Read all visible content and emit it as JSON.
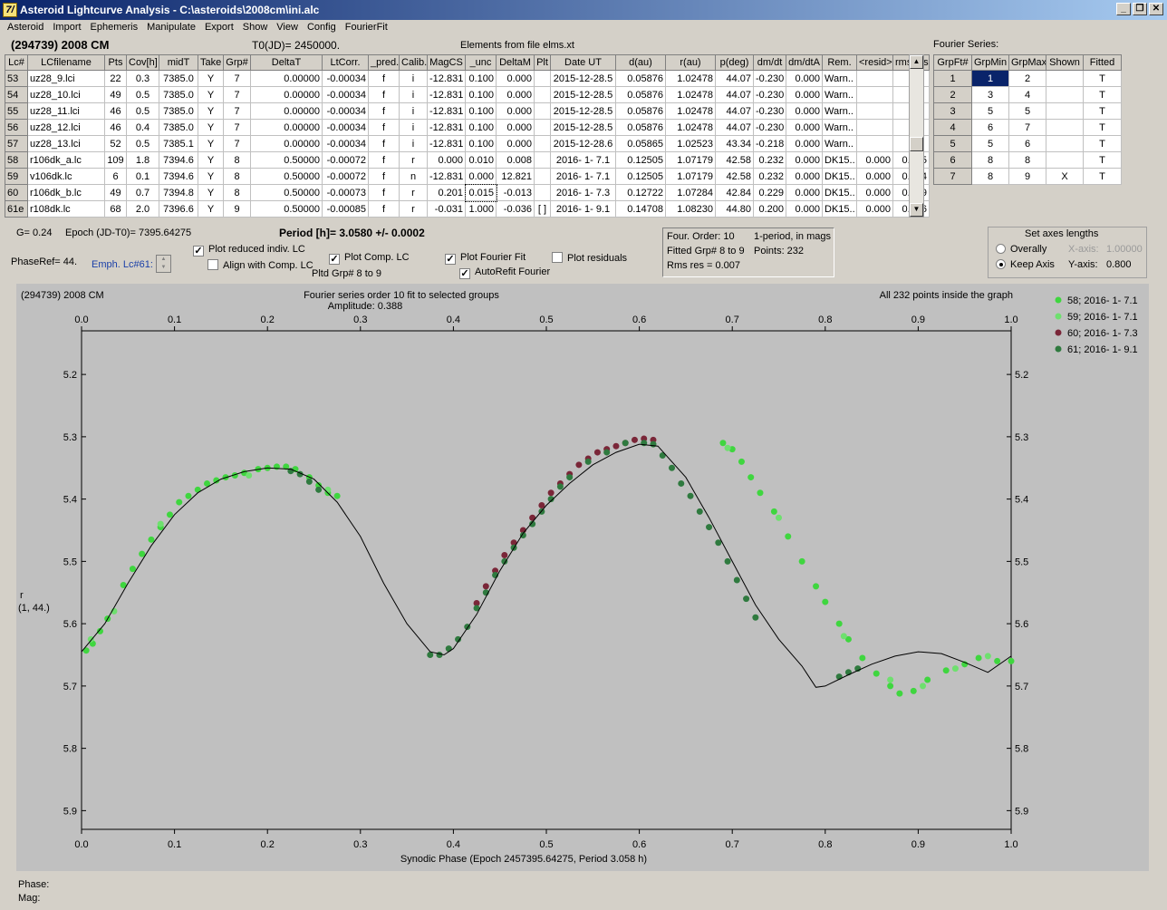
{
  "window": {
    "title": "Asteroid Lightcurve Analysis - C:\\asteroids\\2008cm\\ini.alc",
    "icon_label": "7/"
  },
  "menu": [
    "Asteroid",
    "Import",
    "Ephemeris",
    "Manipulate",
    "Export",
    "Show",
    "View",
    "Config",
    "FourierFit"
  ],
  "header": {
    "asteroid": "(294739) 2008 CM",
    "t0": "T0(JD)= 2450000.",
    "elements": "Elements from file elms.xt",
    "fourier_series_label": "Fourier Series:"
  },
  "lc_table": {
    "columns": [
      "Lc#",
      "LCfilename",
      "Pts",
      "Cov[h]",
      "midT",
      "Take",
      "Grp#",
      "DeltaT",
      "LtCorr.",
      "_pred.",
      "Calib.",
      "MagCS",
      "_unc",
      "DeltaM",
      "Plt",
      "Date UT",
      "d(au)",
      "r(au)",
      "p(deg)",
      "dm/dt",
      "dm/dtA",
      "Rem.",
      "<resid>",
      "rms res"
    ],
    "rows": [
      [
        "53",
        "uz28_9.lci",
        "22",
        "0.3",
        "7385.0",
        "Y",
        "7",
        "0.00000",
        "-0.00034",
        "f",
        "i",
        "-12.831",
        "0.100",
        "0.000",
        "",
        "2015-12-28.5",
        "0.05876",
        "1.02478",
        "44.07",
        "-0.230",
        "0.000",
        "Warn..",
        "",
        ""
      ],
      [
        "54",
        "uz28_10.lci",
        "49",
        "0.5",
        "7385.0",
        "Y",
        "7",
        "0.00000",
        "-0.00034",
        "f",
        "i",
        "-12.831",
        "0.100",
        "0.000",
        "",
        "2015-12-28.5",
        "0.05876",
        "1.02478",
        "44.07",
        "-0.230",
        "0.000",
        "Warn..",
        "",
        ""
      ],
      [
        "55",
        "uz28_11.lci",
        "46",
        "0.5",
        "7385.0",
        "Y",
        "7",
        "0.00000",
        "-0.00034",
        "f",
        "i",
        "-12.831",
        "0.100",
        "0.000",
        "",
        "2015-12-28.5",
        "0.05876",
        "1.02478",
        "44.07",
        "-0.230",
        "0.000",
        "Warn..",
        "",
        ""
      ],
      [
        "56",
        "uz28_12.lci",
        "46",
        "0.4",
        "7385.0",
        "Y",
        "7",
        "0.00000",
        "-0.00034",
        "f",
        "i",
        "-12.831",
        "0.100",
        "0.000",
        "",
        "2015-12-28.5",
        "0.05876",
        "1.02478",
        "44.07",
        "-0.230",
        "0.000",
        "Warn..",
        "",
        ""
      ],
      [
        "57",
        "uz28_13.lci",
        "52",
        "0.5",
        "7385.1",
        "Y",
        "7",
        "0.00000",
        "-0.00034",
        "f",
        "i",
        "-12.831",
        "0.100",
        "0.000",
        "",
        "2015-12-28.6",
        "0.05865",
        "1.02523",
        "43.34",
        "-0.218",
        "0.000",
        "Warn..",
        "",
        ""
      ],
      [
        "58",
        "r106dk_a.lc",
        "109",
        "1.8",
        "7394.6",
        "Y",
        "8",
        "0.50000",
        "-0.00072",
        "f",
        "r",
        "0.000",
        "0.010",
        "0.008",
        "",
        "2016- 1- 7.1",
        "0.12505",
        "1.07179",
        "42.58",
        "0.232",
        "0.000",
        "DK15..",
        "0.000",
        "0.005"
      ],
      [
        "59",
        "v106dk.lc",
        "6",
        "0.1",
        "7394.6",
        "Y",
        "8",
        "0.50000",
        "-0.00072",
        "f",
        "n",
        "-12.831",
        "0.000",
        "12.821",
        "",
        "2016- 1- 7.1",
        "0.12505",
        "1.07179",
        "42.58",
        "0.232",
        "0.000",
        "DK15..",
        "0.000",
        "0.004"
      ],
      [
        "60",
        "r106dk_b.lc",
        "49",
        "0.7",
        "7394.8",
        "Y",
        "8",
        "0.50000",
        "-0.00073",
        "f",
        "r",
        "0.201",
        "0.015",
        "-0.013",
        "",
        "2016- 1- 7.3",
        "0.12722",
        "1.07284",
        "42.84",
        "0.229",
        "0.000",
        "DK15..",
        "0.000",
        "0.009"
      ],
      [
        "61e",
        "r108dk.lc",
        "68",
        "2.0",
        "7396.6",
        "Y",
        "9",
        "0.50000",
        "-0.00085",
        "f",
        "r",
        "-0.031",
        "1.000",
        "-0.036",
        "[ ]",
        "2016- 1- 9.1",
        "0.14708",
        "1.08230",
        "44.80",
        "0.200",
        "0.000",
        "DK15..",
        "0.000",
        "0.006"
      ]
    ]
  },
  "fourier_table": {
    "columns": [
      "GrpFt#",
      "GrpMin",
      "GrpMax",
      "Shown",
      "Fitted"
    ],
    "rows": [
      [
        "1",
        "1",
        "2",
        "",
        "T"
      ],
      [
        "2",
        "3",
        "4",
        "",
        "T"
      ],
      [
        "3",
        "5",
        "5",
        "",
        "T"
      ],
      [
        "4",
        "6",
        "7",
        "",
        "T"
      ],
      [
        "5",
        "5",
        "6",
        "",
        "T"
      ],
      [
        "6",
        "8",
        "8",
        "",
        "T"
      ],
      [
        "7",
        "8",
        "9",
        "X",
        "T"
      ]
    ]
  },
  "controls": {
    "g_value": "G= 0.24",
    "epoch": "Epoch (JD-T0)= 7395.64275",
    "period": "Period [h]= 3.0580 +/- 0.0002",
    "phaseref": "PhaseRef= 44.",
    "emph": "Emph. Lc#61:",
    "plot_reduced": "Plot reduced indiv. LC",
    "align_comp": "Align with Comp. LC",
    "plot_comp": "Plot Comp. LC",
    "pltd_grp": "Pltd Grp#  8  to   9",
    "plot_fourier": "Plot Fourier Fit",
    "autorefit": "AutoRefit Fourier",
    "plot_residuals": "Plot residuals",
    "four_order": "Four. Order: 10",
    "one_period": "1-period, in mags",
    "fitted_grp": "Fitted Grp# 8 to 9",
    "points": "Points: 232",
    "rms_res": "Rms res     = 0.007",
    "axes_title": "Set axes lengths",
    "overally": "Overally",
    "keep_axis": "Keep Axis",
    "x_axis_label": "X-axis:",
    "x_axis_value": "1.00000",
    "y_axis_label": "Y-axis:",
    "y_axis_value": "0.800"
  },
  "status": {
    "phase": "Phase:",
    "mag": "Mag:"
  },
  "chart_data": {
    "type": "scatter",
    "title": "(294739) 2008 CM",
    "subtitle": "Fourier series order 10 fit to selected groups",
    "amplitude": "Amplitude: 0.388",
    "note": "All 232 points inside the graph",
    "xlabel": "Synodic Phase (Epoch 2457395.64275, Period 3.058 h)",
    "ylabel": "r",
    "ylabel2": "(1, 44.)",
    "xlim": [
      0.0,
      1.0
    ],
    "ylim": [
      5.93,
      5.13
    ],
    "xticks": [
      "0.0",
      "0.1",
      "0.2",
      "0.3",
      "0.4",
      "0.5",
      "0.6",
      "0.7",
      "0.8",
      "0.9",
      "1.0"
    ],
    "yticks": [
      "5.2",
      "5.3",
      "5.4",
      "5.5",
      "5.6",
      "5.7",
      "5.8",
      "5.9"
    ],
    "series": [
      {
        "name": "58; 2016- 1- 7.1",
        "color": "#3fd63f",
        "points": [
          [
            0.005,
            5.643
          ],
          [
            0.012,
            5.632
          ],
          [
            0.02,
            5.612
          ],
          [
            0.028,
            5.592
          ],
          [
            0.045,
            5.538
          ],
          [
            0.055,
            5.512
          ],
          [
            0.065,
            5.488
          ],
          [
            0.075,
            5.465
          ],
          [
            0.085,
            5.445
          ],
          [
            0.095,
            5.425
          ],
          [
            0.105,
            5.405
          ],
          [
            0.115,
            5.395
          ],
          [
            0.125,
            5.385
          ],
          [
            0.135,
            5.375
          ],
          [
            0.145,
            5.37
          ],
          [
            0.155,
            5.365
          ],
          [
            0.165,
            5.362
          ],
          [
            0.175,
            5.358
          ],
          [
            0.19,
            5.352
          ],
          [
            0.2,
            5.35
          ],
          [
            0.21,
            5.348
          ],
          [
            0.22,
            5.348
          ],
          [
            0.23,
            5.352
          ],
          [
            0.245,
            5.365
          ],
          [
            0.255,
            5.378
          ],
          [
            0.265,
            5.39
          ],
          [
            0.275,
            5.395
          ],
          [
            0.69,
            5.31
          ],
          [
            0.7,
            5.32
          ],
          [
            0.71,
            5.34
          ],
          [
            0.72,
            5.365
          ],
          [
            0.73,
            5.39
          ],
          [
            0.745,
            5.42
          ],
          [
            0.76,
            5.46
          ],
          [
            0.775,
            5.5
          ],
          [
            0.79,
            5.54
          ],
          [
            0.8,
            5.565
          ],
          [
            0.815,
            5.6
          ],
          [
            0.825,
            5.625
          ],
          [
            0.84,
            5.655
          ],
          [
            0.855,
            5.68
          ],
          [
            0.87,
            5.7
          ],
          [
            0.88,
            5.712
          ],
          [
            0.895,
            5.708
          ],
          [
            0.91,
            5.69
          ],
          [
            0.93,
            5.675
          ],
          [
            0.95,
            5.665
          ],
          [
            0.965,
            5.655
          ],
          [
            0.985,
            5.66
          ],
          [
            1.0,
            5.66
          ]
        ]
      },
      {
        "name": "59; 2016- 1- 7.1",
        "color": "#6ee06e",
        "points": [
          [
            0.01,
            5.625
          ],
          [
            0.035,
            5.58
          ],
          [
            0.085,
            5.44
          ],
          [
            0.18,
            5.362
          ],
          [
            0.265,
            5.385
          ],
          [
            0.695,
            5.318
          ],
          [
            0.75,
            5.43
          ],
          [
            0.82,
            5.62
          ],
          [
            0.87,
            5.69
          ],
          [
            0.905,
            5.7
          ],
          [
            0.94,
            5.672
          ],
          [
            0.975,
            5.652
          ]
        ]
      },
      {
        "name": "60; 2016- 1- 7.3",
        "color": "#7a2638",
        "points": [
          [
            0.425,
            5.567
          ],
          [
            0.435,
            5.54
          ],
          [
            0.445,
            5.515
          ],
          [
            0.455,
            5.49
          ],
          [
            0.465,
            5.47
          ],
          [
            0.475,
            5.45
          ],
          [
            0.485,
            5.43
          ],
          [
            0.495,
            5.41
          ],
          [
            0.505,
            5.39
          ],
          [
            0.515,
            5.375
          ],
          [
            0.525,
            5.36
          ],
          [
            0.535,
            5.345
          ],
          [
            0.545,
            5.335
          ],
          [
            0.555,
            5.325
          ],
          [
            0.565,
            5.32
          ],
          [
            0.575,
            5.315
          ],
          [
            0.585,
            5.31
          ],
          [
            0.595,
            5.305
          ],
          [
            0.605,
            5.303
          ],
          [
            0.615,
            5.305
          ]
        ]
      },
      {
        "name": "61; 2016- 1- 9.1",
        "color": "#2f7a3f",
        "points": [
          [
            0.225,
            5.355
          ],
          [
            0.235,
            5.36
          ],
          [
            0.245,
            5.372
          ],
          [
            0.255,
            5.385
          ],
          [
            0.375,
            5.65
          ],
          [
            0.385,
            5.65
          ],
          [
            0.395,
            5.64
          ],
          [
            0.405,
            5.625
          ],
          [
            0.415,
            5.605
          ],
          [
            0.425,
            5.575
          ],
          [
            0.435,
            5.55
          ],
          [
            0.445,
            5.522
          ],
          [
            0.455,
            5.5
          ],
          [
            0.465,
            5.478
          ],
          [
            0.475,
            5.458
          ],
          [
            0.485,
            5.44
          ],
          [
            0.495,
            5.42
          ],
          [
            0.505,
            5.4
          ],
          [
            0.515,
            5.38
          ],
          [
            0.525,
            5.365
          ],
          [
            0.545,
            5.34
          ],
          [
            0.565,
            5.325
          ],
          [
            0.585,
            5.31
          ],
          [
            0.605,
            5.31
          ],
          [
            0.615,
            5.312
          ],
          [
            0.625,
            5.33
          ],
          [
            0.635,
            5.35
          ],
          [
            0.645,
            5.375
          ],
          [
            0.655,
            5.395
          ],
          [
            0.665,
            5.42
          ],
          [
            0.675,
            5.445
          ],
          [
            0.685,
            5.47
          ],
          [
            0.695,
            5.5
          ],
          [
            0.705,
            5.53
          ],
          [
            0.715,
            5.56
          ],
          [
            0.725,
            5.59
          ],
          [
            0.815,
            5.685
          ],
          [
            0.825,
            5.678
          ],
          [
            0.835,
            5.672
          ]
        ]
      }
    ],
    "fit_curve": [
      [
        0.0,
        5.645
      ],
      [
        0.025,
        5.6
      ],
      [
        0.05,
        5.535
      ],
      [
        0.075,
        5.475
      ],
      [
        0.1,
        5.425
      ],
      [
        0.125,
        5.39
      ],
      [
        0.15,
        5.368
      ],
      [
        0.175,
        5.356
      ],
      [
        0.2,
        5.35
      ],
      [
        0.225,
        5.352
      ],
      [
        0.25,
        5.368
      ],
      [
        0.275,
        5.405
      ],
      [
        0.3,
        5.46
      ],
      [
        0.325,
        5.535
      ],
      [
        0.35,
        5.6
      ],
      [
        0.375,
        5.645
      ],
      [
        0.39,
        5.65
      ],
      [
        0.4,
        5.64
      ],
      [
        0.425,
        5.585
      ],
      [
        0.45,
        5.515
      ],
      [
        0.475,
        5.455
      ],
      [
        0.5,
        5.41
      ],
      [
        0.525,
        5.375
      ],
      [
        0.55,
        5.345
      ],
      [
        0.575,
        5.325
      ],
      [
        0.6,
        5.312
      ],
      [
        0.62,
        5.315
      ],
      [
        0.65,
        5.365
      ],
      [
        0.675,
        5.43
      ],
      [
        0.7,
        5.5
      ],
      [
        0.725,
        5.57
      ],
      [
        0.75,
        5.625
      ],
      [
        0.775,
        5.668
      ],
      [
        0.79,
        5.702
      ],
      [
        0.8,
        5.7
      ],
      [
        0.825,
        5.682
      ],
      [
        0.85,
        5.665
      ],
      [
        0.875,
        5.652
      ],
      [
        0.9,
        5.645
      ],
      [
        0.925,
        5.648
      ],
      [
        0.95,
        5.662
      ],
      [
        0.975,
        5.678
      ],
      [
        1.0,
        5.652
      ]
    ]
  }
}
